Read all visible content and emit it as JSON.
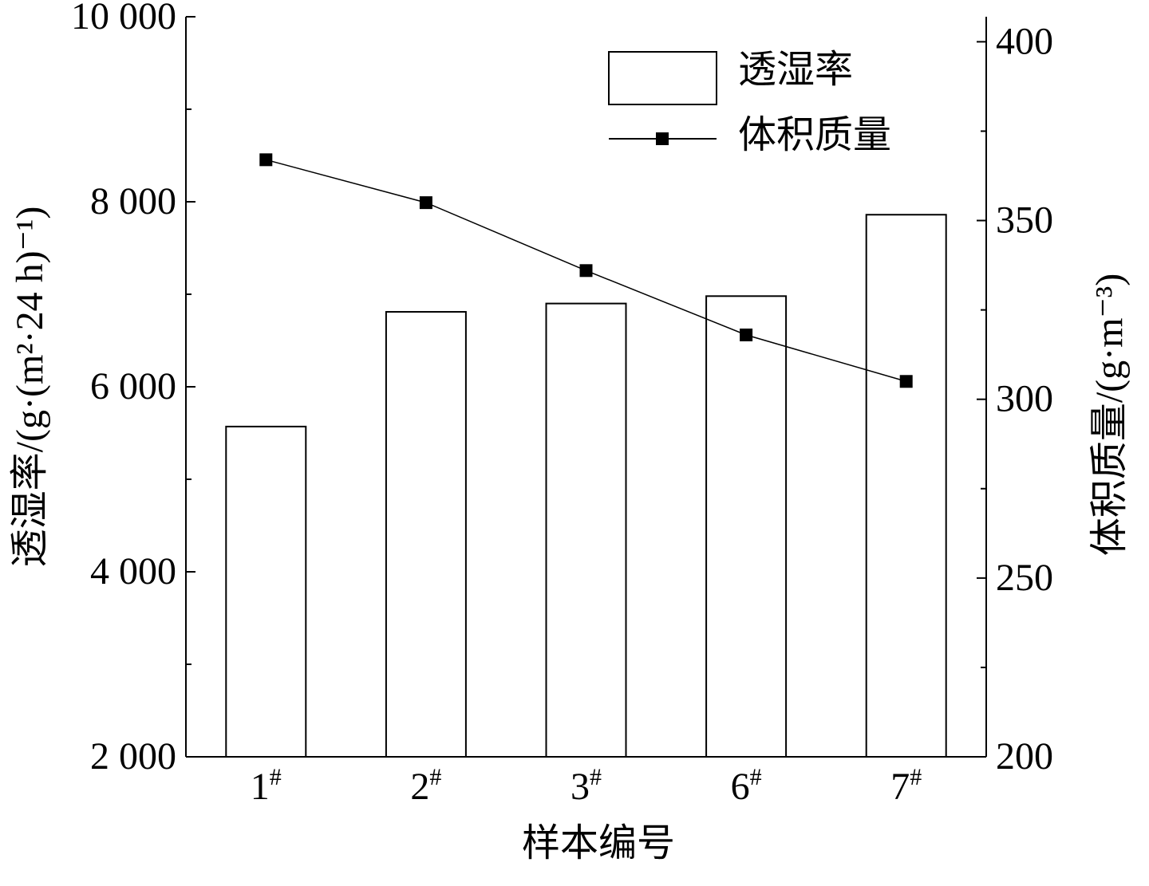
{
  "chart_data": {
    "type": "bar_line",
    "x_label": "样本编号",
    "y_label": "透湿率/(g·(m²·24 h)⁻¹)",
    "y2_label": "体积质量/(g·m⁻³)",
    "categories": [
      "1#",
      "2#",
      "3#",
      "6#",
      "7#"
    ],
    "series": [
      {
        "name": "透湿率",
        "type": "bar",
        "color": "#ffffff",
        "values": [
          5570,
          6810,
          6900,
          6980,
          7860
        ]
      },
      {
        "name": "体积质量",
        "type": "line",
        "axis": "y2",
        "color": "#000000",
        "values": [
          367,
          355,
          336,
          318,
          305
        ]
      }
    ],
    "ylim": [
      2000,
      10000
    ],
    "yticks": [
      {
        "value": 2000,
        "label": "2 000"
      },
      {
        "value": 4000,
        "label": "4 000"
      },
      {
        "value": 6000,
        "label": "6 000"
      },
      {
        "value": 8000,
        "label": "8 000"
      },
      {
        "value": 10000,
        "label": "10 000"
      }
    ],
    "yminor": [
      3000,
      5000,
      7000,
      9000
    ],
    "y2lim": [
      200,
      407
    ],
    "y2ticks": [
      200,
      250,
      300,
      350,
      400
    ],
    "y2minor": [
      225,
      275,
      325,
      375
    ],
    "legend": "upper right"
  }
}
